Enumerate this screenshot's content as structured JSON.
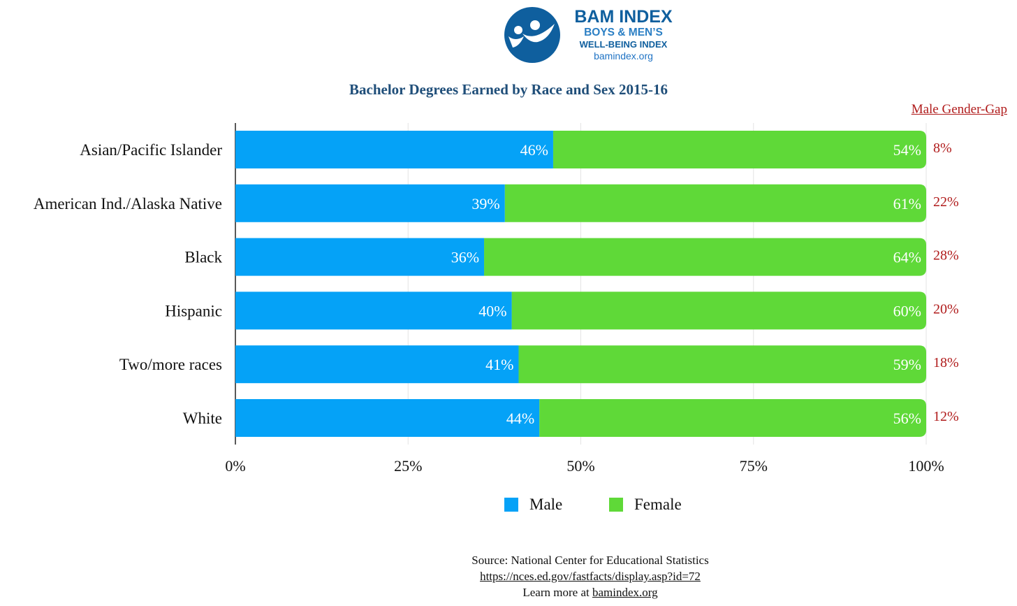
{
  "logo": {
    "title": "BAM INDEX",
    "subtitle1": "BOYS & MEN’S",
    "subtitle2": "WELL-BEING INDEX",
    "url": "bamindex.org"
  },
  "gap_header": "Male Gender-Gap",
  "colors": {
    "male": "#05a2f7",
    "female": "#5fd938",
    "gap": "#b01b1b",
    "title": "#1f4e79"
  },
  "chart_data": {
    "type": "bar",
    "orientation": "horizontal",
    "stacked": true,
    "title": "Bachelor Degrees Earned by Race and Sex 2015-16",
    "categories": [
      "Asian/Pacific Islander",
      "American Ind./Alaska Native",
      "Black",
      "Hispanic",
      "Two/more races",
      "White"
    ],
    "series": [
      {
        "name": "Male",
        "values": [
          46,
          39,
          36,
          40,
          41,
          44
        ],
        "labels": [
          "46%",
          "39%",
          "36%",
          "40%",
          "41%",
          "44%"
        ]
      },
      {
        "name": "Female",
        "values": [
          54,
          61,
          64,
          60,
          59,
          56
        ],
        "labels": [
          "54%",
          "61%",
          "64%",
          "60%",
          "59%",
          "56%"
        ]
      }
    ],
    "gap_labels": [
      "8%",
      "22%",
      "28%",
      "20%",
      "18%",
      "12%"
    ],
    "xlim": [
      0,
      100
    ],
    "xticks": [
      "0%",
      "25%",
      "50%",
      "75%",
      "100%"
    ],
    "grid": true,
    "legend": "bottom"
  },
  "source": {
    "line1": "Source: National Center for Educational Statistics",
    "line2": "https://nces.ed.gov/fastfacts/display.asp?id=72",
    "line3_prefix": "Learn more at ",
    "line3_link": "bamindex.org"
  }
}
